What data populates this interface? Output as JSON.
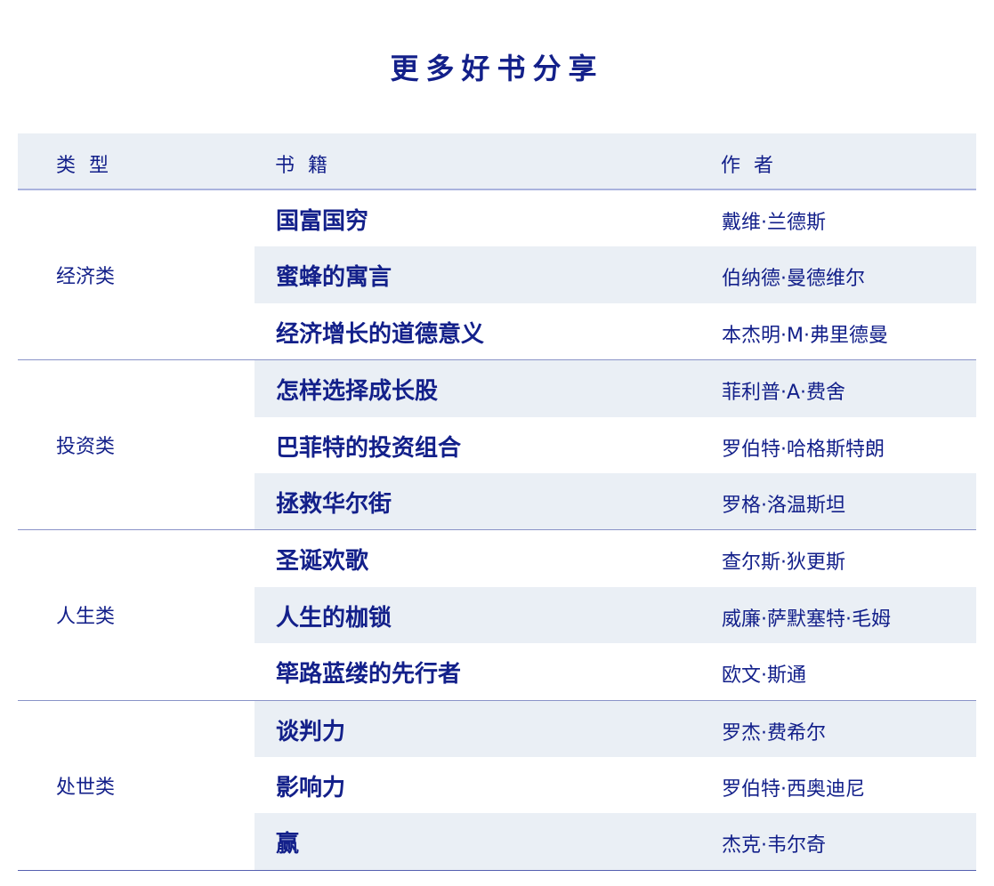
{
  "title": "更多好书分享",
  "headers": {
    "type": "类 型",
    "book": "书 籍",
    "author": "作 者"
  },
  "colors": {
    "text": "#13208a",
    "stripe": "#eaeff5",
    "border": "#8a93c8"
  },
  "groups": [
    {
      "category": "经济类",
      "rows": [
        {
          "book": "国富国穷",
          "author": "戴维·兰德斯"
        },
        {
          "book": "蜜蜂的寓言",
          "author": "伯纳德·曼德维尔"
        },
        {
          "book": "经济增长的道德意义",
          "author": "本杰明·M·弗里德曼"
        }
      ]
    },
    {
      "category": "投资类",
      "rows": [
        {
          "book": "怎样选择成长股",
          "author": "菲利普·A·费舍"
        },
        {
          "book": "巴菲特的投资组合",
          "author": "罗伯特·哈格斯特朗"
        },
        {
          "book": "拯救华尔街",
          "author": "罗格·洛温斯坦"
        }
      ]
    },
    {
      "category": "人生类",
      "rows": [
        {
          "book": "圣诞欢歌",
          "author": "查尔斯·狄更斯"
        },
        {
          "book": "人生的枷锁",
          "author": "威廉·萨默塞特·毛姆"
        },
        {
          "book": "筚路蓝缕的先行者",
          "author": "欧文·斯通"
        }
      ]
    },
    {
      "category": "处世类",
      "rows": [
        {
          "book": " 谈判力",
          "author": "罗杰·费希尔"
        },
        {
          "book": "影响力",
          "author": "罗伯特·西奥迪尼"
        },
        {
          "book": "赢",
          "author": "杰克·韦尔奇"
        }
      ]
    }
  ]
}
